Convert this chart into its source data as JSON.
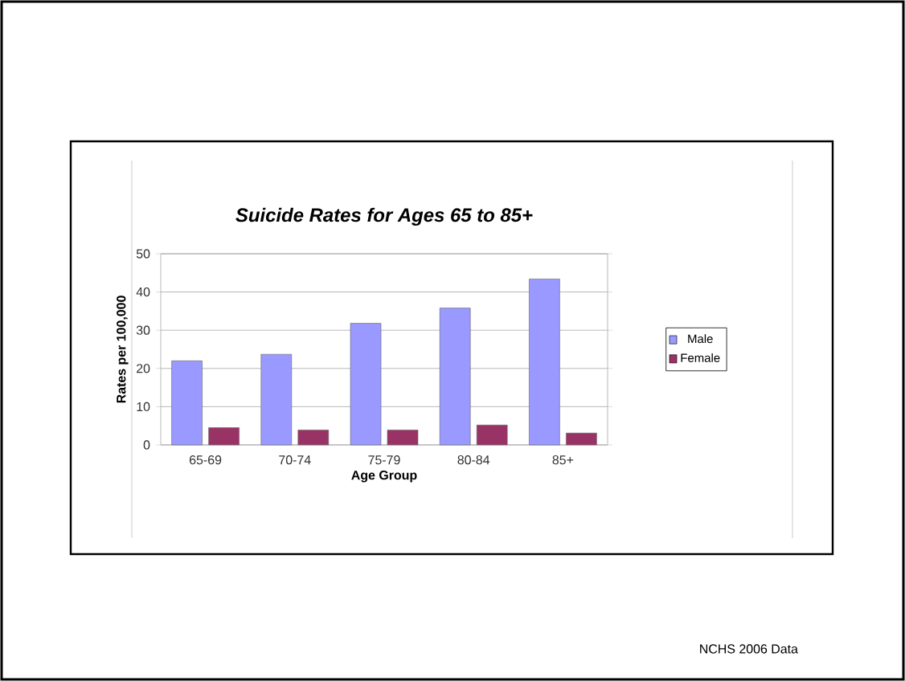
{
  "chart_data": {
    "type": "bar",
    "title": "Suicide Rates for Ages 65 to 85+",
    "xlabel": "Age Group",
    "ylabel": "Rates per 100,000",
    "categories": [
      "65-69",
      "70-74",
      "75-79",
      "80-84",
      "85+"
    ],
    "series": [
      {
        "name": "Male",
        "color": "#9999ff",
        "values": [
          22,
          23.7,
          31.8,
          35.8,
          43.4
        ]
      },
      {
        "name": "Female",
        "color": "#993366",
        "values": [
          4.5,
          3.9,
          3.9,
          5.2,
          3.1
        ]
      }
    ],
    "ylim": [
      0,
      50
    ],
    "yticks": [
      0,
      10,
      20,
      30,
      40,
      50
    ],
    "grid": "y",
    "legend": "right",
    "annotations": [
      "NCHS 2006 Data"
    ]
  }
}
